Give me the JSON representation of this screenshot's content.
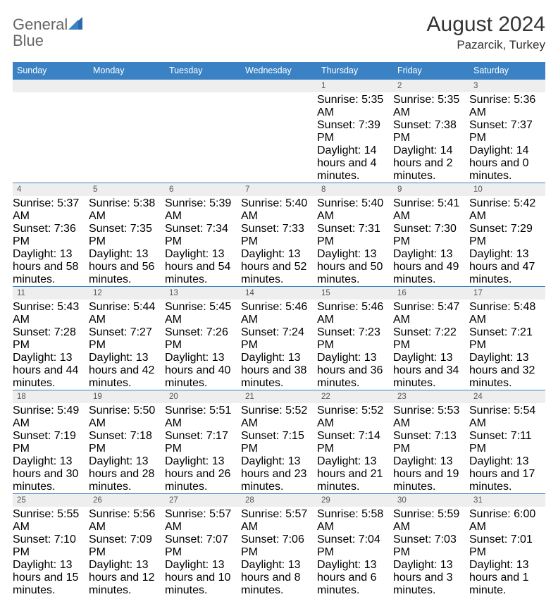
{
  "brand": {
    "part1": "General",
    "part2": "Blue"
  },
  "title": "August 2024",
  "location": "Pazarcik, Turkey",
  "colors": {
    "header_bg": "#3b82c4",
    "header_text": "#ffffff",
    "daynum_bg": "#eeeeee",
    "border": "#3b82c4",
    "body_text": "#333333",
    "brand_gray": "#666666",
    "brand_blue": "#3b82c4"
  },
  "typography": {
    "title_fontsize": 30,
    "location_fontsize": 17,
    "dayheader_fontsize": 12.5,
    "daynum_fontsize": 11.5,
    "body_fontsize": 10
  },
  "day_headers": [
    "Sunday",
    "Monday",
    "Tuesday",
    "Wednesday",
    "Thursday",
    "Friday",
    "Saturday"
  ],
  "weeks": [
    [
      null,
      null,
      null,
      null,
      {
        "num": "1",
        "sunrise": "Sunrise: 5:35 AM",
        "sunset": "Sunset: 7:39 PM",
        "daylight": "Daylight: 14 hours and 4 minutes."
      },
      {
        "num": "2",
        "sunrise": "Sunrise: 5:35 AM",
        "sunset": "Sunset: 7:38 PM",
        "daylight": "Daylight: 14 hours and 2 minutes."
      },
      {
        "num": "3",
        "sunrise": "Sunrise: 5:36 AM",
        "sunset": "Sunset: 7:37 PM",
        "daylight": "Daylight: 14 hours and 0 minutes."
      }
    ],
    [
      {
        "num": "4",
        "sunrise": "Sunrise: 5:37 AM",
        "sunset": "Sunset: 7:36 PM",
        "daylight": "Daylight: 13 hours and 58 minutes."
      },
      {
        "num": "5",
        "sunrise": "Sunrise: 5:38 AM",
        "sunset": "Sunset: 7:35 PM",
        "daylight": "Daylight: 13 hours and 56 minutes."
      },
      {
        "num": "6",
        "sunrise": "Sunrise: 5:39 AM",
        "sunset": "Sunset: 7:34 PM",
        "daylight": "Daylight: 13 hours and 54 minutes."
      },
      {
        "num": "7",
        "sunrise": "Sunrise: 5:40 AM",
        "sunset": "Sunset: 7:33 PM",
        "daylight": "Daylight: 13 hours and 52 minutes."
      },
      {
        "num": "8",
        "sunrise": "Sunrise: 5:40 AM",
        "sunset": "Sunset: 7:31 PM",
        "daylight": "Daylight: 13 hours and 50 minutes."
      },
      {
        "num": "9",
        "sunrise": "Sunrise: 5:41 AM",
        "sunset": "Sunset: 7:30 PM",
        "daylight": "Daylight: 13 hours and 49 minutes."
      },
      {
        "num": "10",
        "sunrise": "Sunrise: 5:42 AM",
        "sunset": "Sunset: 7:29 PM",
        "daylight": "Daylight: 13 hours and 47 minutes."
      }
    ],
    [
      {
        "num": "11",
        "sunrise": "Sunrise: 5:43 AM",
        "sunset": "Sunset: 7:28 PM",
        "daylight": "Daylight: 13 hours and 44 minutes."
      },
      {
        "num": "12",
        "sunrise": "Sunrise: 5:44 AM",
        "sunset": "Sunset: 7:27 PM",
        "daylight": "Daylight: 13 hours and 42 minutes."
      },
      {
        "num": "13",
        "sunrise": "Sunrise: 5:45 AM",
        "sunset": "Sunset: 7:26 PM",
        "daylight": "Daylight: 13 hours and 40 minutes."
      },
      {
        "num": "14",
        "sunrise": "Sunrise: 5:46 AM",
        "sunset": "Sunset: 7:24 PM",
        "daylight": "Daylight: 13 hours and 38 minutes."
      },
      {
        "num": "15",
        "sunrise": "Sunrise: 5:46 AM",
        "sunset": "Sunset: 7:23 PM",
        "daylight": "Daylight: 13 hours and 36 minutes."
      },
      {
        "num": "16",
        "sunrise": "Sunrise: 5:47 AM",
        "sunset": "Sunset: 7:22 PM",
        "daylight": "Daylight: 13 hours and 34 minutes."
      },
      {
        "num": "17",
        "sunrise": "Sunrise: 5:48 AM",
        "sunset": "Sunset: 7:21 PM",
        "daylight": "Daylight: 13 hours and 32 minutes."
      }
    ],
    [
      {
        "num": "18",
        "sunrise": "Sunrise: 5:49 AM",
        "sunset": "Sunset: 7:19 PM",
        "daylight": "Daylight: 13 hours and 30 minutes."
      },
      {
        "num": "19",
        "sunrise": "Sunrise: 5:50 AM",
        "sunset": "Sunset: 7:18 PM",
        "daylight": "Daylight: 13 hours and 28 minutes."
      },
      {
        "num": "20",
        "sunrise": "Sunrise: 5:51 AM",
        "sunset": "Sunset: 7:17 PM",
        "daylight": "Daylight: 13 hours and 26 minutes."
      },
      {
        "num": "21",
        "sunrise": "Sunrise: 5:52 AM",
        "sunset": "Sunset: 7:15 PM",
        "daylight": "Daylight: 13 hours and 23 minutes."
      },
      {
        "num": "22",
        "sunrise": "Sunrise: 5:52 AM",
        "sunset": "Sunset: 7:14 PM",
        "daylight": "Daylight: 13 hours and 21 minutes."
      },
      {
        "num": "23",
        "sunrise": "Sunrise: 5:53 AM",
        "sunset": "Sunset: 7:13 PM",
        "daylight": "Daylight: 13 hours and 19 minutes."
      },
      {
        "num": "24",
        "sunrise": "Sunrise: 5:54 AM",
        "sunset": "Sunset: 7:11 PM",
        "daylight": "Daylight: 13 hours and 17 minutes."
      }
    ],
    [
      {
        "num": "25",
        "sunrise": "Sunrise: 5:55 AM",
        "sunset": "Sunset: 7:10 PM",
        "daylight": "Daylight: 13 hours and 15 minutes."
      },
      {
        "num": "26",
        "sunrise": "Sunrise: 5:56 AM",
        "sunset": "Sunset: 7:09 PM",
        "daylight": "Daylight: 13 hours and 12 minutes."
      },
      {
        "num": "27",
        "sunrise": "Sunrise: 5:57 AM",
        "sunset": "Sunset: 7:07 PM",
        "daylight": "Daylight: 13 hours and 10 minutes."
      },
      {
        "num": "28",
        "sunrise": "Sunrise: 5:57 AM",
        "sunset": "Sunset: 7:06 PM",
        "daylight": "Daylight: 13 hours and 8 minutes."
      },
      {
        "num": "29",
        "sunrise": "Sunrise: 5:58 AM",
        "sunset": "Sunset: 7:04 PM",
        "daylight": "Daylight: 13 hours and 6 minutes."
      },
      {
        "num": "30",
        "sunrise": "Sunrise: 5:59 AM",
        "sunset": "Sunset: 7:03 PM",
        "daylight": "Daylight: 13 hours and 3 minutes."
      },
      {
        "num": "31",
        "sunrise": "Sunrise: 6:00 AM",
        "sunset": "Sunset: 7:01 PM",
        "daylight": "Daylight: 13 hours and 1 minute."
      }
    ]
  ]
}
